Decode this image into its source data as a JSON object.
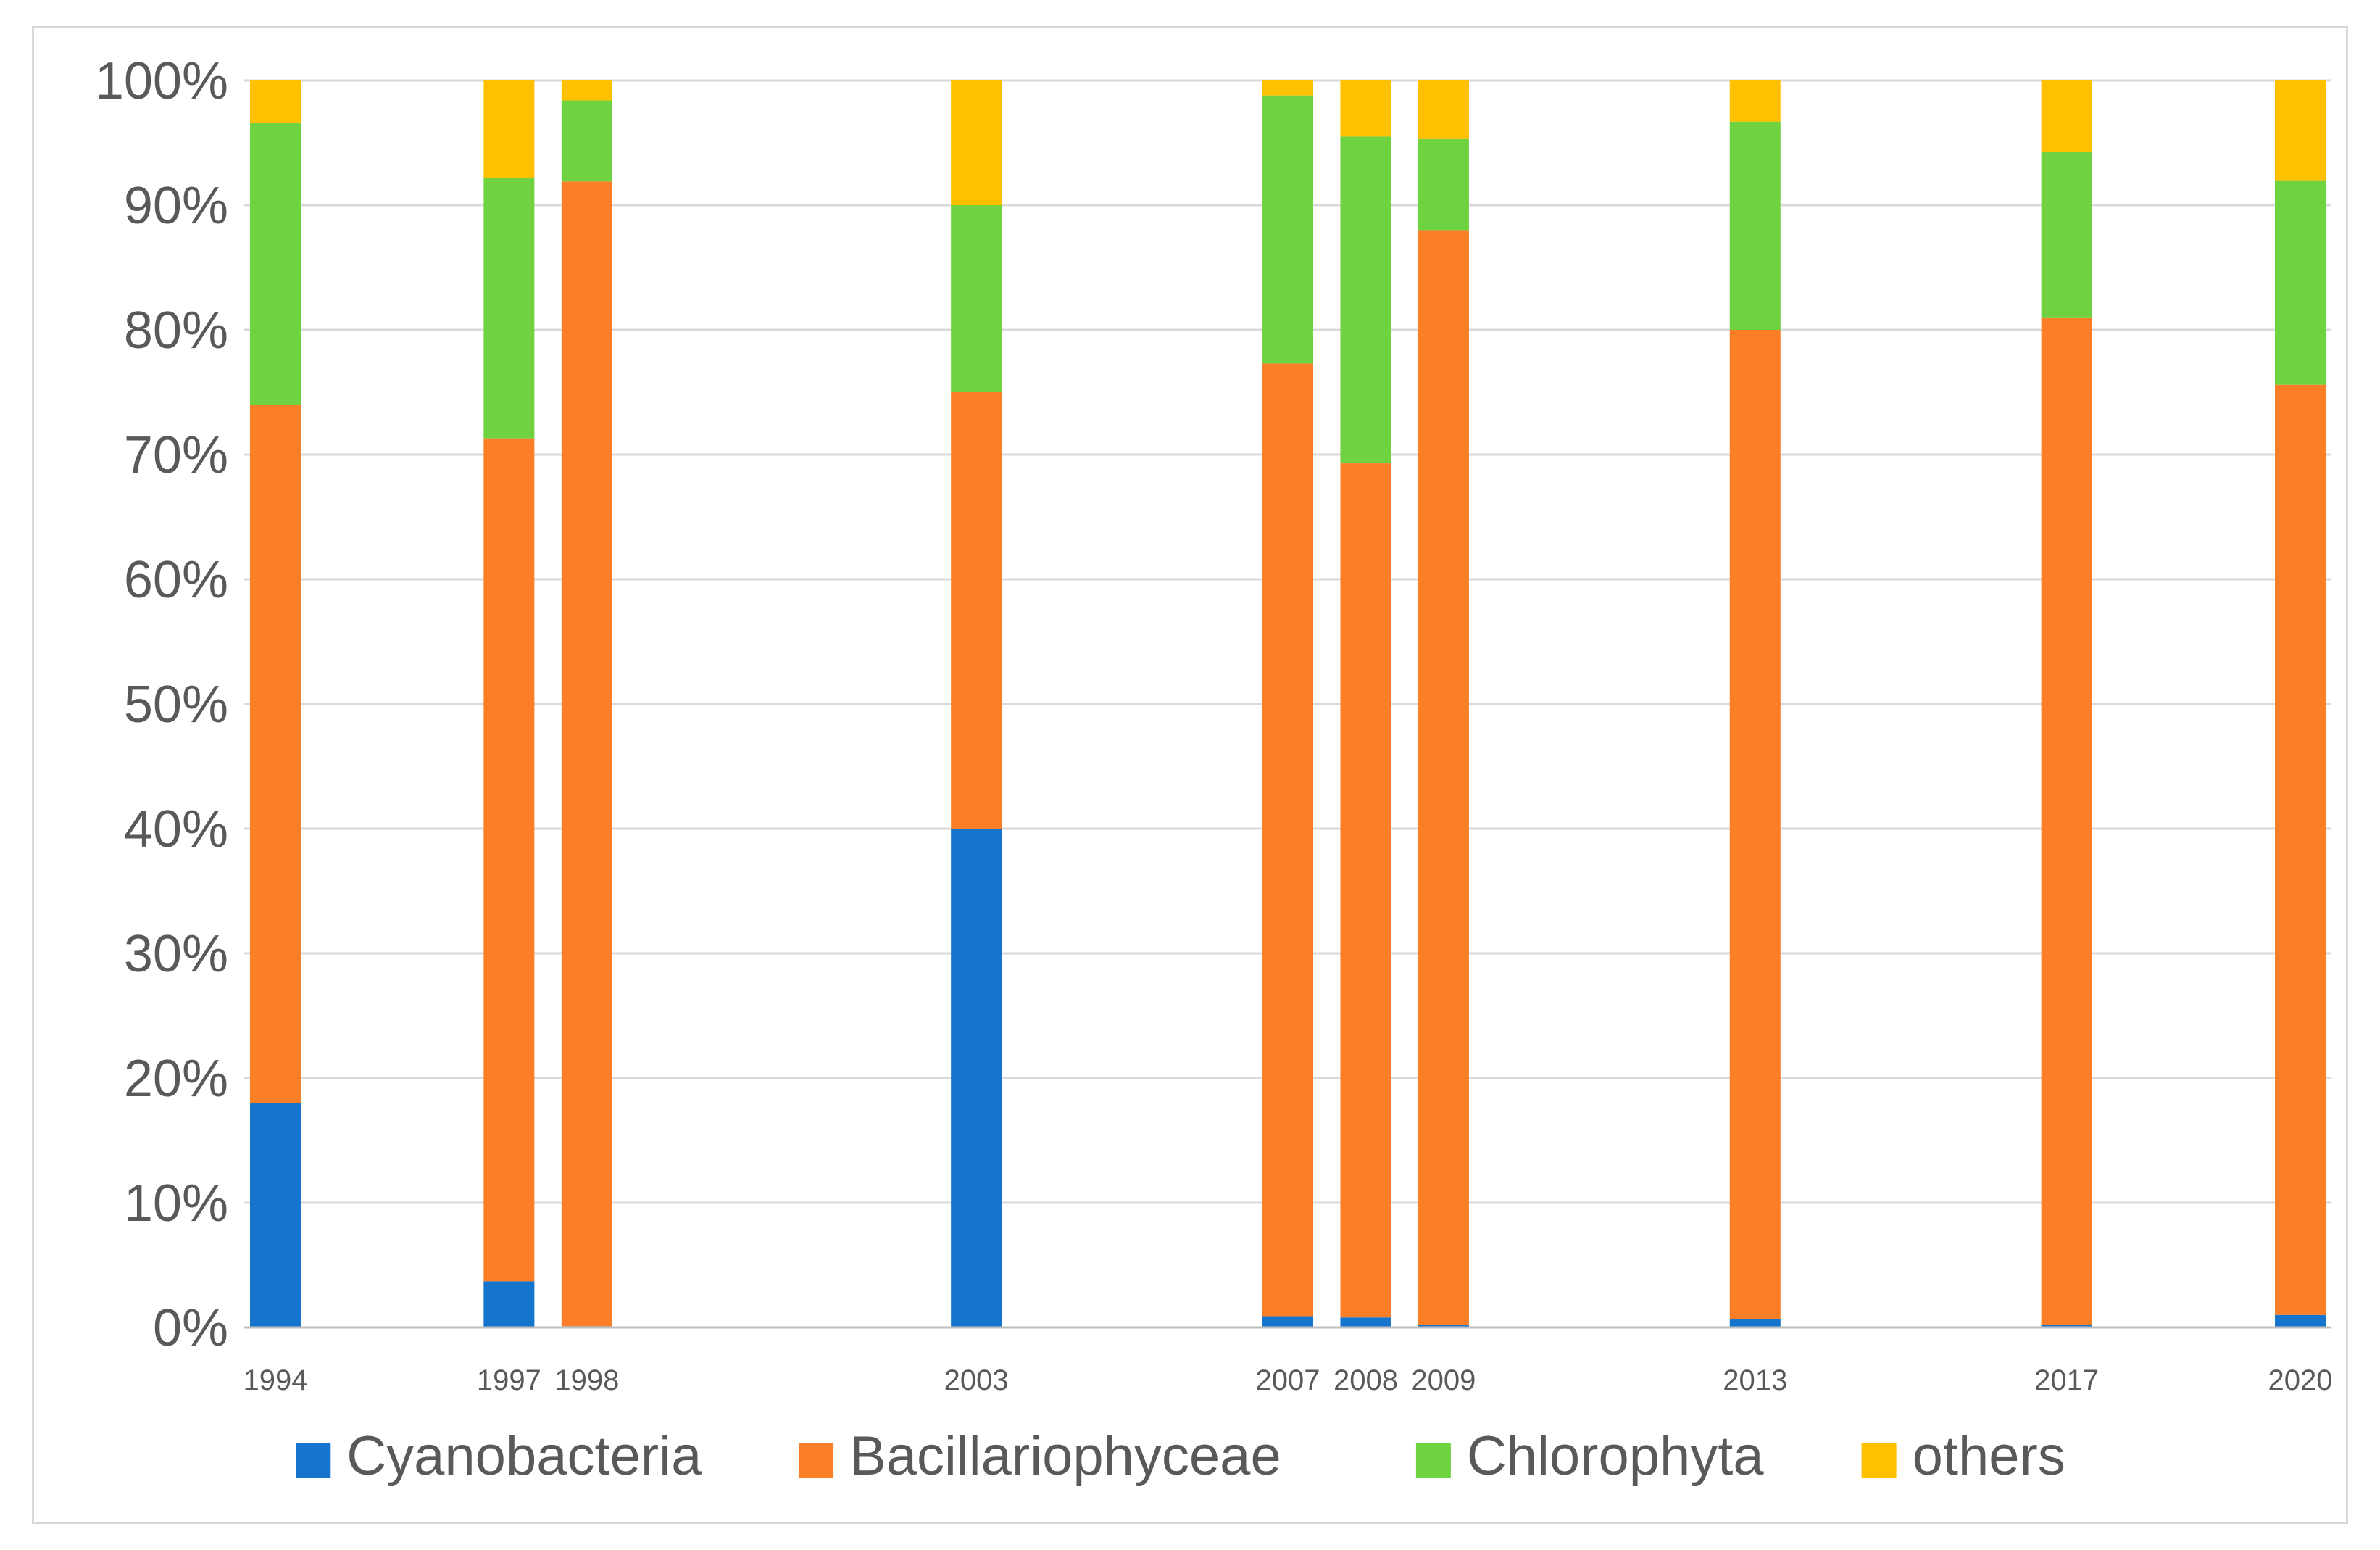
{
  "chart_data": {
    "type": "bar",
    "stacked": true,
    "percent_axis": true,
    "title": "",
    "xlabel": "",
    "ylabel": "",
    "ylim": [
      0,
      100
    ],
    "y_ticks": [
      0,
      10,
      20,
      30,
      40,
      50,
      60,
      70,
      80,
      90,
      100
    ],
    "y_tick_labels": [
      "0%",
      "10%",
      "20%",
      "30%",
      "40%",
      "50%",
      "60%",
      "70%",
      "80%",
      "90%",
      "100%"
    ],
    "x_axis_type": "year",
    "xlim": [
      1993.6,
      2020.4
    ],
    "grid": true,
    "legend_position": "bottom",
    "categories": [
      "1994",
      "1997",
      "1998",
      "2003",
      "2007",
      "2008",
      "2009",
      "2013",
      "2017",
      "2020"
    ],
    "series": [
      {
        "name": "Cyanobacteria",
        "color": "#1574cc",
        "values": [
          18.0,
          3.7,
          0.1,
          40.0,
          0.9,
          0.8,
          0.2,
          0.7,
          0.2,
          1.0
        ]
      },
      {
        "name": "Bacillariophyceae",
        "color": "#fc7e27",
        "values": [
          56.0,
          67.6,
          91.8,
          35.0,
          76.4,
          68.5,
          87.8,
          79.3,
          80.8,
          74.6
        ]
      },
      {
        "name": "Chlorophyta",
        "color": "#6fd240",
        "values": [
          22.6,
          20.9,
          6.5,
          15.0,
          21.5,
          26.2,
          7.3,
          16.7,
          13.3,
          16.4
        ]
      },
      {
        "name": "others",
        "color": "#ffc000",
        "values": [
          3.4,
          7.8,
          1.6,
          10.0,
          1.2,
          4.5,
          4.7,
          3.3,
          5.7,
          8.0
        ]
      }
    ]
  }
}
